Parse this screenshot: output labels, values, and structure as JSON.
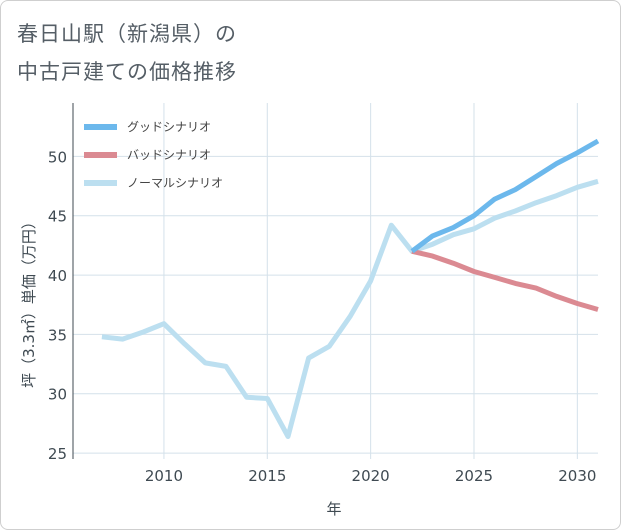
{
  "title_line1": "春日山駅（新潟県）の",
  "title_line2": "中古戸建ての価格推移",
  "chart_data": {
    "type": "line",
    "xlabel": "年",
    "ylabel": "坪（3.3㎡）単価（万円）",
    "xlim": [
      2005.6,
      2031.0
    ],
    "ylim": [
      24.5,
      54.5
    ],
    "x_ticks": [
      2010,
      2015,
      2020,
      2025,
      2030
    ],
    "y_ticks": [
      25,
      30,
      35,
      40,
      45,
      50
    ],
    "grid": true,
    "legend_position": "top-left",
    "series": [
      {
        "key": "good",
        "name": "グッドシナリオ",
        "color": "#6cb8ec",
        "x": [
          2022,
          2023,
          2024,
          2025,
          2026,
          2027,
          2028,
          2029,
          2030,
          2031
        ],
        "values": [
          42.0,
          43.3,
          44.0,
          45.0,
          46.4,
          47.2,
          48.3,
          49.4,
          50.3,
          51.3
        ]
      },
      {
        "key": "bad",
        "name": "バッドシナリオ",
        "color": "#db8a92",
        "x": [
          2022,
          2023,
          2024,
          2025,
          2026,
          2027,
          2028,
          2029,
          2030,
          2031
        ],
        "values": [
          42.0,
          41.6,
          41.0,
          40.3,
          39.8,
          39.3,
          38.9,
          38.2,
          37.6,
          37.1
        ]
      },
      {
        "key": "normal",
        "name": "ノーマルシナリオ",
        "color": "#bcdff0",
        "x": [
          2007,
          2008,
          2009,
          2010,
          2011,
          2012,
          2013,
          2014,
          2015,
          2016,
          2017,
          2018,
          2019,
          2020,
          2021,
          2022,
          2023,
          2024,
          2025,
          2026,
          2027,
          2028,
          2029,
          2030,
          2031
        ],
        "values": [
          34.8,
          34.6,
          35.2,
          35.9,
          34.2,
          32.6,
          32.3,
          29.7,
          29.6,
          26.4,
          33.0,
          34.0,
          36.5,
          39.5,
          44.2,
          42.0,
          42.6,
          43.4,
          43.9,
          44.8,
          45.4,
          46.1,
          46.7,
          47.4,
          47.9
        ]
      }
    ]
  }
}
